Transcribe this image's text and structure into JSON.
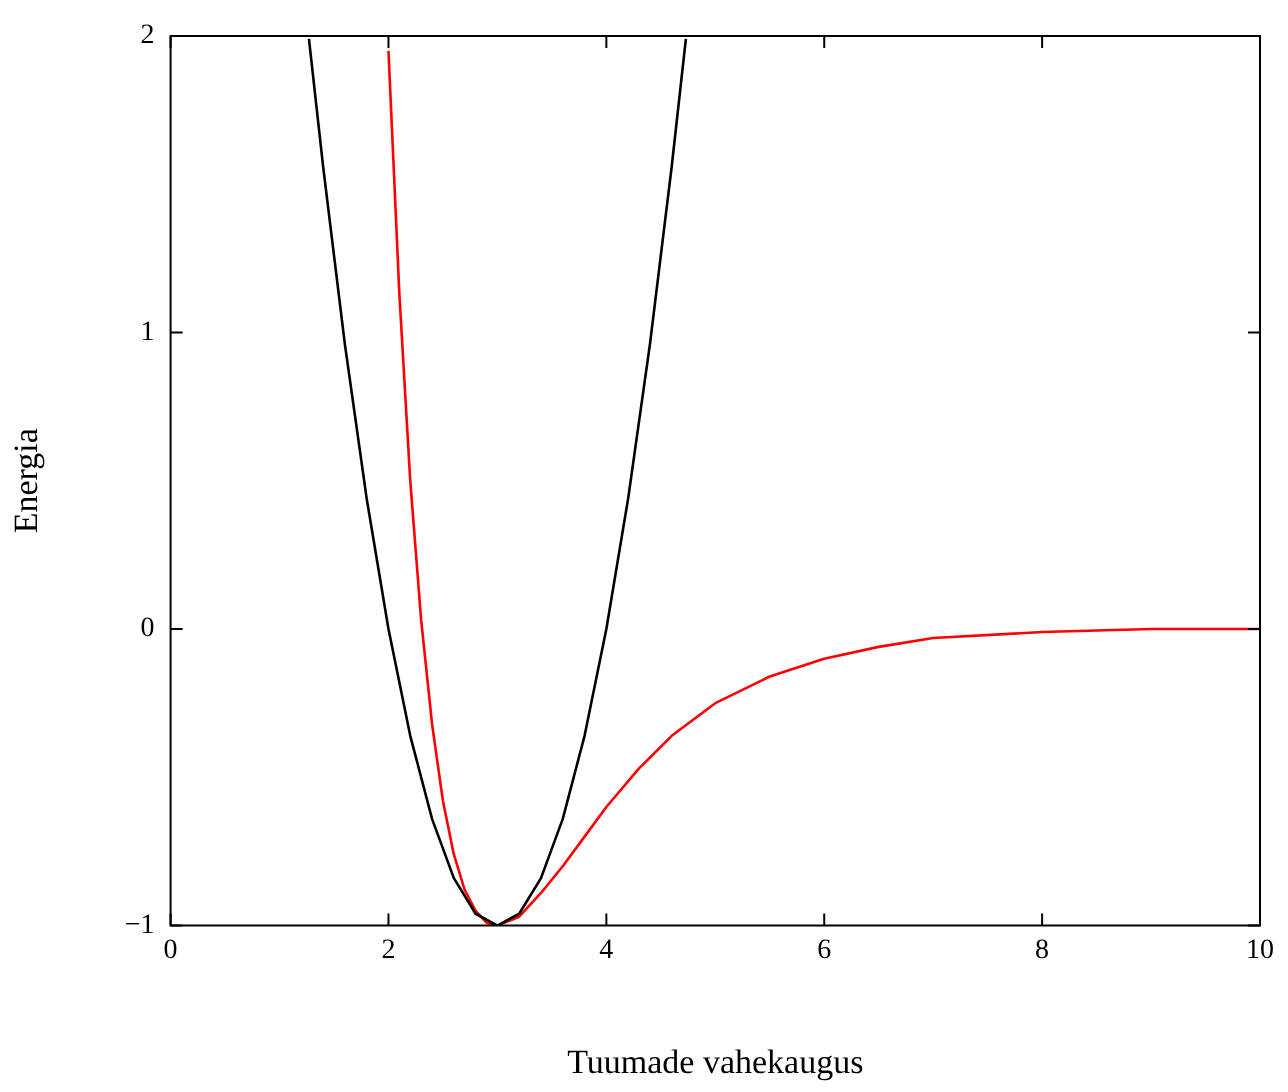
{
  "chart_data": {
    "type": "line",
    "xlabel": "Tuumade vahekaugus",
    "ylabel": "Energia",
    "xlim": [
      0,
      10
    ],
    "xticks": [
      0,
      2,
      4,
      6,
      8,
      10
    ],
    "ylim": [
      -1,
      2
    ],
    "yticks": [
      {
        "value": -1,
        "label": "−1"
      },
      0,
      1,
      2
    ],
    "grid": false,
    "legend": false,
    "marker": "none",
    "line_style": "solid",
    "series": [
      {
        "color": "#000000",
        "x": [
          1.27,
          1.4,
          1.6,
          1.8,
          2.0,
          2.2,
          2.4,
          2.6,
          2.8,
          3.0,
          3.2,
          3.4,
          3.6,
          3.8,
          4.0,
          4.2,
          4.4,
          4.6,
          4.73
        ],
        "values": [
          1.99,
          1.56,
          0.96,
          0.44,
          0,
          -0.36,
          -0.64,
          -0.84,
          -0.96,
          -1,
          -0.96,
          -0.84,
          -0.64,
          -0.36,
          0,
          0.44,
          0.96,
          1.56,
          1.99
        ]
      },
      {
        "color": "#ff0000",
        "x": [
          2.0,
          2.1,
          2.2,
          2.3,
          2.4,
          2.5,
          2.6,
          2.7,
          2.8,
          2.9,
          3.0,
          3.2,
          3.4,
          3.6,
          3.8,
          4.0,
          4.3,
          4.6,
          5.0,
          5.5,
          6.0,
          6.5,
          7.0,
          8.0,
          9.0,
          10.0
        ],
        "values": [
          1.95,
          1.13,
          0.5,
          0.03,
          -0.32,
          -0.58,
          -0.76,
          -0.88,
          -0.95,
          -0.99,
          -1,
          -0.97,
          -0.89,
          -0.8,
          -0.7,
          -0.6,
          -0.47,
          -0.36,
          -0.25,
          -0.16,
          -0.1,
          -0.06,
          -0.03,
          -0.01,
          0,
          0
        ]
      }
    ]
  }
}
